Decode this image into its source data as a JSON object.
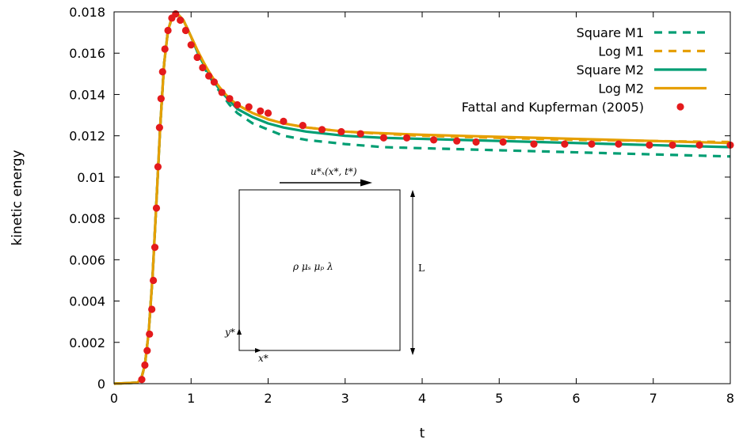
{
  "chart_data": {
    "type": "line",
    "title": "",
    "xlabel": "t",
    "ylabel": "kinetic energy",
    "xlim": [
      0,
      8
    ],
    "ylim": [
      0,
      0.018
    ],
    "xticks": [
      0,
      1,
      2,
      3,
      4,
      5,
      6,
      7,
      8
    ],
    "yticks": [
      0,
      0.002,
      0.004,
      0.006,
      0.008,
      0.01,
      0.012,
      0.014,
      0.016,
      0.018
    ],
    "ytick_labels": [
      "0",
      "0.002",
      "0.004",
      "0.006",
      "0.008",
      "0.01",
      "0.012",
      "0.014",
      "0.016",
      "0.018"
    ],
    "legend_position": "top-right",
    "grid": false,
    "series": [
      {
        "name": "Square M1",
        "style": "dashed",
        "color": "#009e73",
        "x": [
          0,
          0.3,
          0.35,
          0.4,
          0.45,
          0.5,
          0.55,
          0.6,
          0.65,
          0.7,
          0.75,
          0.8,
          0.85,
          0.9,
          1.0,
          1.1,
          1.2,
          1.3,
          1.4,
          1.5,
          1.6,
          1.8,
          2.0,
          2.2,
          2.5,
          3.0,
          3.5,
          4.0,
          4.5,
          5.0,
          5.5,
          6.0,
          6.5,
          7.0,
          7.5,
          8.0
        ],
        "y": [
          0,
          5e-05,
          0.0002,
          0.0009,
          0.0025,
          0.0052,
          0.0088,
          0.0125,
          0.0155,
          0.0171,
          0.0177,
          0.0179,
          0.0178,
          0.0176,
          0.0168,
          0.0159,
          0.0151,
          0.0145,
          0.014,
          0.0135,
          0.0131,
          0.0126,
          0.0123,
          0.012,
          0.0118,
          0.0116,
          0.01145,
          0.0114,
          0.01135,
          0.0113,
          0.01125,
          0.0112,
          0.01115,
          0.0111,
          0.01105,
          0.011
        ]
      },
      {
        "name": "Log M1",
        "style": "dashed",
        "color": "#e69f00",
        "x": [
          0,
          0.3,
          0.35,
          0.4,
          0.45,
          0.5,
          0.55,
          0.6,
          0.65,
          0.7,
          0.75,
          0.8,
          0.85,
          0.9,
          1.0,
          1.1,
          1.2,
          1.3,
          1.4,
          1.5,
          1.6,
          1.8,
          2.0,
          2.2,
          2.5,
          3.0,
          3.5,
          4.0,
          4.5,
          5.0,
          5.5,
          6.0,
          6.5,
          7.0,
          7.5,
          8.0
        ],
        "y": [
          0,
          5e-05,
          0.0002,
          0.0009,
          0.0025,
          0.0052,
          0.0088,
          0.0125,
          0.0155,
          0.0171,
          0.0177,
          0.0179,
          0.0178,
          0.0176,
          0.0168,
          0.016,
          0.0153,
          0.0147,
          0.0142,
          0.0138,
          0.0135,
          0.0131,
          0.0128,
          0.0126,
          0.0124,
          0.0122,
          0.0121,
          0.012,
          0.01195,
          0.0119,
          0.01185,
          0.0118,
          0.01178,
          0.01175,
          0.01172,
          0.0117
        ]
      },
      {
        "name": "Square M2",
        "style": "solid",
        "color": "#009e73",
        "x": [
          0,
          0.3,
          0.35,
          0.4,
          0.45,
          0.5,
          0.55,
          0.6,
          0.65,
          0.7,
          0.75,
          0.8,
          0.85,
          0.9,
          1.0,
          1.1,
          1.2,
          1.3,
          1.4,
          1.5,
          1.6,
          1.8,
          2.0,
          2.2,
          2.5,
          3.0,
          3.5,
          4.0,
          4.5,
          5.0,
          5.5,
          6.0,
          6.5,
          7.0,
          7.5,
          8.0
        ],
        "y": [
          0,
          5e-05,
          0.0002,
          0.0009,
          0.0025,
          0.0052,
          0.0088,
          0.0125,
          0.0155,
          0.0171,
          0.0177,
          0.0179,
          0.0178,
          0.0176,
          0.0168,
          0.0159,
          0.0152,
          0.0146,
          0.0141,
          0.0137,
          0.0133,
          0.0129,
          0.0126,
          0.0124,
          0.0122,
          0.012,
          0.0119,
          0.01185,
          0.0118,
          0.01175,
          0.0117,
          0.01165,
          0.0116,
          0.01155,
          0.0115,
          0.01145
        ]
      },
      {
        "name": "Log M2",
        "style": "solid",
        "color": "#e69f00",
        "x": [
          0,
          0.3,
          0.35,
          0.4,
          0.45,
          0.5,
          0.55,
          0.6,
          0.65,
          0.7,
          0.75,
          0.8,
          0.85,
          0.9,
          1.0,
          1.1,
          1.2,
          1.3,
          1.4,
          1.5,
          1.6,
          1.8,
          2.0,
          2.2,
          2.5,
          3.0,
          3.5,
          4.0,
          4.5,
          5.0,
          5.5,
          6.0,
          6.5,
          7.0,
          7.5,
          8.0
        ],
        "y": [
          0,
          5e-05,
          0.0002,
          0.0009,
          0.0025,
          0.0052,
          0.0088,
          0.0125,
          0.0155,
          0.0171,
          0.0177,
          0.0179,
          0.0178,
          0.0176,
          0.0168,
          0.016,
          0.0153,
          0.0147,
          0.0142,
          0.0138,
          0.0135,
          0.0131,
          0.0128,
          0.0126,
          0.0124,
          0.0122,
          0.01212,
          0.01205,
          0.012,
          0.01195,
          0.0119,
          0.01185,
          0.0118,
          0.01175,
          0.0117,
          0.01165
        ]
      },
      {
        "name": "Fattal and Kupferman (2005)",
        "style": "points",
        "color": "#e41a1c",
        "x": [
          0.36,
          0.4,
          0.43,
          0.46,
          0.49,
          0.51,
          0.53,
          0.55,
          0.57,
          0.59,
          0.61,
          0.63,
          0.66,
          0.7,
          0.75,
          0.8,
          0.86,
          0.93,
          1.0,
          1.08,
          1.15,
          1.23,
          1.3,
          1.4,
          1.5,
          1.6,
          1.75,
          1.9,
          2.0,
          2.2,
          2.45,
          2.7,
          2.95,
          3.2,
          3.5,
          3.8,
          4.15,
          4.45,
          4.7,
          5.05,
          5.45,
          5.85,
          6.2,
          6.55,
          6.95,
          7.25,
          7.6,
          8.0
        ],
        "y": [
          0.0002,
          0.0009,
          0.0016,
          0.0024,
          0.0036,
          0.005,
          0.0066,
          0.0085,
          0.0105,
          0.0124,
          0.0138,
          0.0151,
          0.0162,
          0.0171,
          0.0177,
          0.0179,
          0.0176,
          0.0171,
          0.0164,
          0.0158,
          0.0153,
          0.0149,
          0.0146,
          0.0141,
          0.0138,
          0.0135,
          0.0134,
          0.0132,
          0.0131,
          0.0127,
          0.0125,
          0.0123,
          0.0122,
          0.0121,
          0.0119,
          0.0119,
          0.0118,
          0.01175,
          0.0117,
          0.0117,
          0.0116,
          0.0116,
          0.0116,
          0.0116,
          0.01155,
          0.01155,
          0.01155,
          0.01155
        ]
      }
    ],
    "inset": {
      "velocity_label": "u*ₓ(x*, t*)",
      "params_label": "ρ μₛ μₚ λ",
      "length_label": "L",
      "xaxis_label": "x*",
      "yaxis_label": "y*"
    }
  }
}
